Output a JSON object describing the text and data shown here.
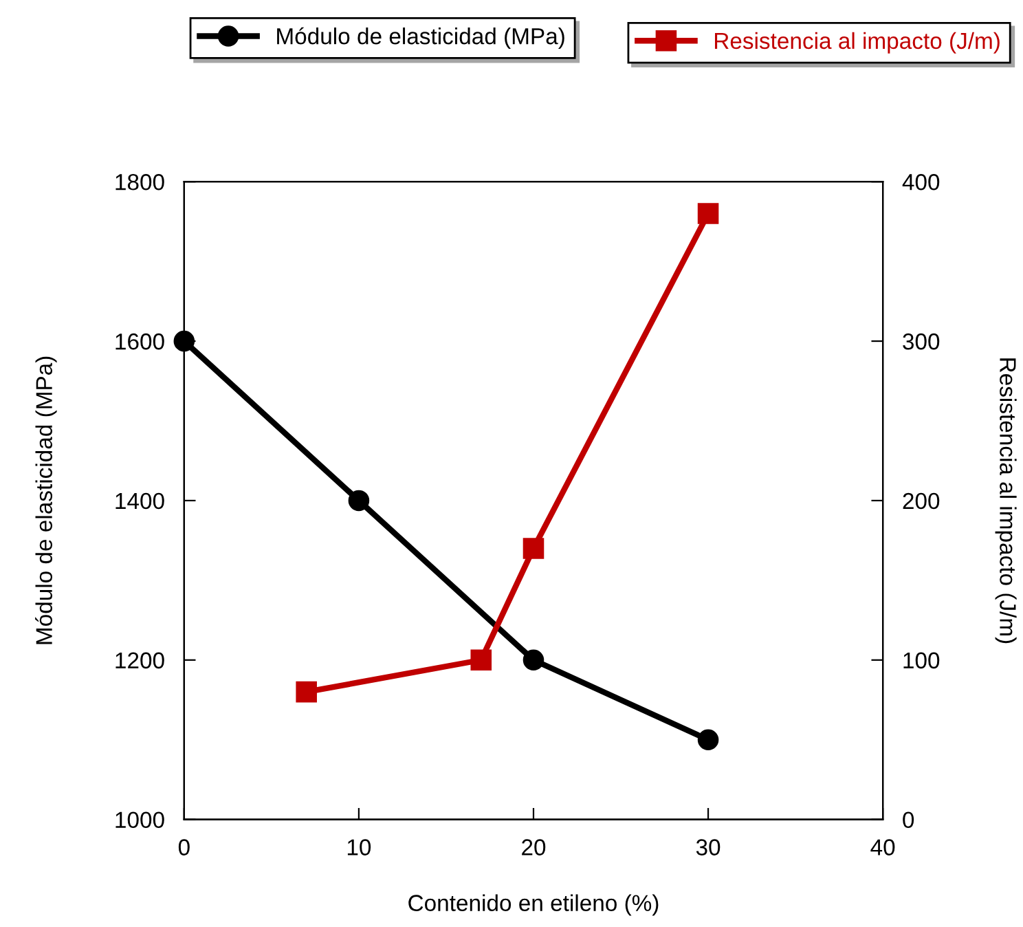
{
  "chart_data": {
    "type": "line",
    "xlabel": "Contenido en etileno (%)",
    "ylabel": "Módulo de elasticidad (MPa)",
    "y2label": "Resistencia al impacto (J/m)",
    "xlim": [
      0,
      40
    ],
    "xticks": [
      0,
      10,
      20,
      30,
      40
    ],
    "ylim": [
      1000,
      1800
    ],
    "yticks": [
      1000,
      1200,
      1400,
      1600,
      1800
    ],
    "y2lim": [
      0,
      400
    ],
    "y2ticks": [
      0,
      100,
      200,
      300,
      400
    ],
    "legend": "top",
    "grid": false,
    "series": [
      {
        "name": "Módulo de elasticidad (MPa)",
        "color": "#000000",
        "marker": "circle",
        "x": [
          0,
          10,
          20,
          30
        ],
        "values": [
          1600,
          1400,
          1200,
          1100
        ]
      },
      {
        "name": "Resistencia al impacto (J/m)",
        "color": "#c00000",
        "marker": "square",
        "axis": "y2",
        "x": [
          7,
          17,
          20,
          30
        ],
        "values": [
          80,
          100,
          170,
          380
        ]
      }
    ]
  }
}
